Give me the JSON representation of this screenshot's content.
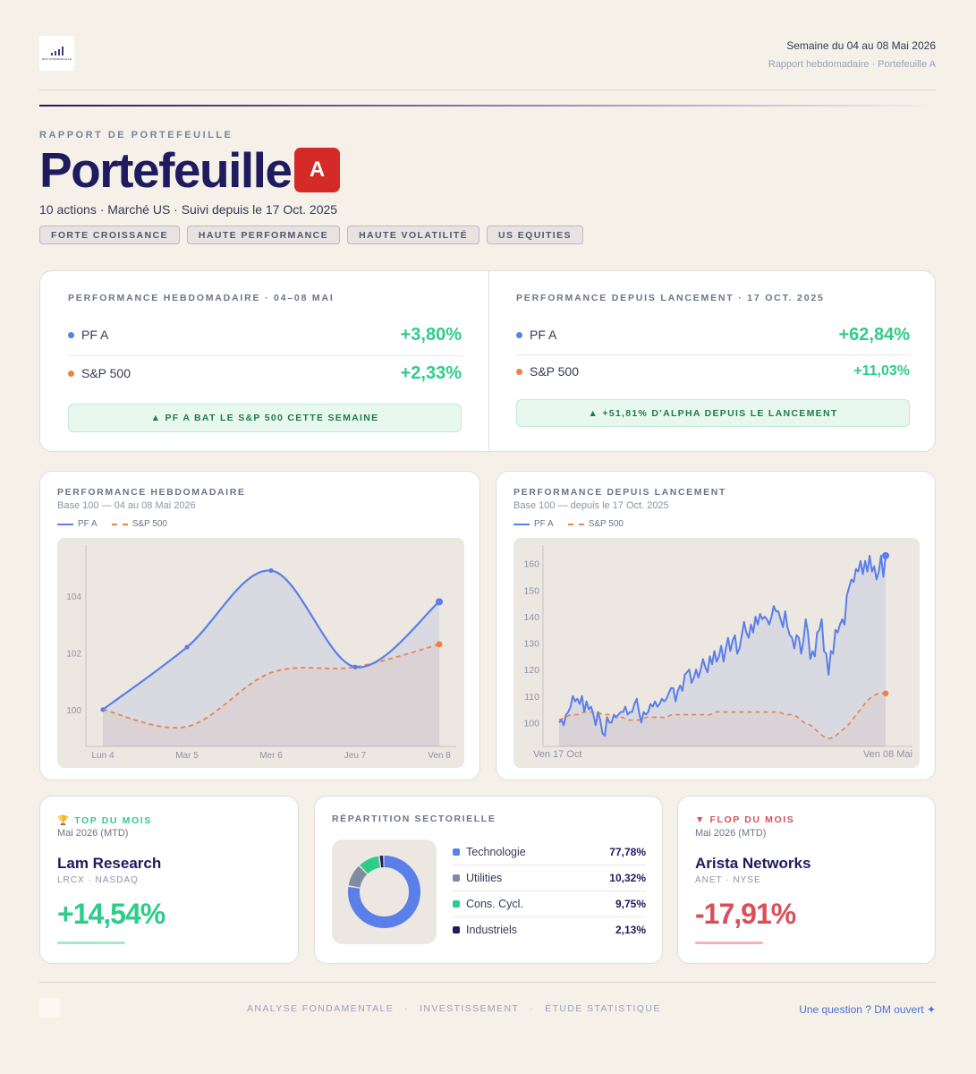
{
  "header": {
    "logo_text": "RDV PORTEFEUILLE",
    "week": "Semaine du 04 au 08 Mai 2026",
    "subtitle": "Rapport hebdomadaire · Portefeuille A"
  },
  "hero": {
    "kicker": "RAPPORT DE PORTEFEUILLE",
    "title": "Portefeuille",
    "badge": "A",
    "description": "10 actions · Marché US · Suivi depuis le 17 Oct. 2025",
    "tags": [
      "FORTE CROISSANCE",
      "HAUTE PERFORMANCE",
      "HAUTE VOLATILITÉ",
      "US EQUITIES"
    ]
  },
  "performance": {
    "weekly": {
      "label": "PERFORMANCE HEBDOMADAIRE · 04–08 MAI",
      "rows": [
        {
          "name": "PF A",
          "value": "+3,80%"
        },
        {
          "name": "S&P 500",
          "value": "+2,33%"
        }
      ],
      "banner": "▲  PF A BAT LE S&P 500 CETTE SEMAINE"
    },
    "launch": {
      "label": "PERFORMANCE DEPUIS LANCEMENT · 17 OCT. 2025",
      "rows": [
        {
          "name": "PF A",
          "value": "+62,84%"
        },
        {
          "name": "S&P 500",
          "value": "+11,03%"
        }
      ],
      "banner": "▲  +51,81% D'ALPHA DEPUIS LE LANCEMENT"
    }
  },
  "colors": {
    "pf": "#5a7fe8",
    "sp": "#e8844a",
    "green": "#2ecc8a",
    "red": "#d9505a"
  },
  "chart_data": [
    {
      "type": "line",
      "title": "PERFORMANCE HEBDOMADAIRE",
      "subtitle": "Base 100 — 04 au 08 Mai 2026",
      "categories": [
        "Lun 4",
        "Mar 5",
        "Mer 6",
        "Jeu 7",
        "Ven 8"
      ],
      "y_ticks": [
        100,
        102,
        104
      ],
      "ylim": [
        98.7,
        105.8
      ],
      "series": [
        {
          "name": "PF A",
          "values": [
            100.0,
            102.2,
            104.9,
            101.5,
            103.8
          ]
        },
        {
          "name": "S&P 500",
          "values": [
            100.0,
            99.4,
            101.3,
            101.5,
            102.3
          ]
        }
      ]
    },
    {
      "type": "line",
      "title": "PERFORMANCE DEPUIS LANCEMENT",
      "subtitle": "Base 100 — depuis le 17 Oct. 2025",
      "x_start_label": "Ven 17 Oct",
      "x_end_label": "Ven 08 Mai",
      "y_ticks": [
        100,
        110,
        120,
        130,
        140,
        150,
        160
      ],
      "ylim": [
        91,
        167
      ],
      "series": [
        {
          "name": "PF A",
          "values": [
            100,
            101,
            99,
            103,
            104,
            106,
            110,
            108,
            109,
            107,
            110,
            104,
            108,
            105,
            106,
            103,
            99,
            104,
            101,
            96,
            95,
            102,
            100,
            100,
            103,
            102,
            103,
            104,
            104,
            106,
            103,
            104,
            104,
            107,
            109,
            104,
            100,
            104,
            103,
            104,
            107,
            106,
            108,
            106,
            107,
            109,
            108,
            109,
            111,
            113,
            113,
            108,
            112,
            114,
            112,
            118,
            119,
            120,
            115,
            117,
            120,
            117,
            120,
            124,
            121,
            119,
            125,
            122,
            127,
            123,
            125,
            129,
            123,
            128,
            132,
            127,
            131,
            133,
            126,
            128,
            133,
            138,
            134,
            132,
            137,
            134,
            140,
            137,
            141,
            139,
            140,
            139,
            137,
            140,
            144,
            142,
            142,
            139,
            136,
            142,
            136,
            133,
            132,
            128,
            133,
            132,
            126,
            131,
            139,
            134,
            124,
            127,
            125,
            134,
            135,
            139,
            127,
            126,
            118,
            127,
            126,
            135,
            134,
            137,
            139,
            137,
            148,
            151,
            154,
            153,
            158,
            157,
            161,
            156,
            161,
            157,
            163,
            157,
            159,
            154,
            157,
            163,
            155,
            163
          ]
        },
        {
          "name": "S&P 500",
          "values": [
            101,
            102,
            103,
            103,
            104,
            104,
            104,
            103,
            103,
            102,
            102,
            101,
            101,
            101,
            102,
            102,
            102,
            102,
            103,
            103,
            103,
            103,
            103,
            103,
            103,
            104,
            104,
            104,
            104,
            104,
            104,
            104,
            104,
            104,
            104,
            104,
            103,
            103,
            102,
            100,
            99,
            97,
            95,
            94,
            95,
            97,
            99,
            102,
            105,
            108,
            110,
            111,
            111
          ]
        }
      ]
    },
    {
      "type": "pie",
      "title": "RÉPARTITION SECTORIELLE",
      "categories": [
        "Technologie",
        "Utilities",
        "Cons. Cycl.",
        "Industriels"
      ],
      "values": [
        77.78,
        10.32,
        9.75,
        2.13
      ],
      "labels": [
        "77,78%",
        "10,32%",
        "9,75%",
        "2,13%"
      ],
      "colors": [
        "#5a7fe8",
        "#7f8aa3",
        "#2ecc8a",
        "#1e1b5e"
      ]
    }
  ],
  "top": {
    "header": "🏆 TOP DU MOIS",
    "period": "Mai 2026 (MTD)",
    "name": "Lam Research",
    "ticker": "LRCX  ·  NASDAQ",
    "value": "+14,54%"
  },
  "flop": {
    "header": "▼ FLOP DU MOIS",
    "period": "Mai 2026 (MTD)",
    "name": "Arista Networks",
    "ticker": "ANET  ·  NYSE",
    "value": "-17,91%"
  },
  "footer": {
    "items": [
      "ANALYSE FONDAMENTALE",
      "·",
      "INVESTISSEMENT",
      "·",
      "ÉTUDE STATISTIQUE"
    ],
    "cta": "Une question ? DM ouvert ✦"
  }
}
